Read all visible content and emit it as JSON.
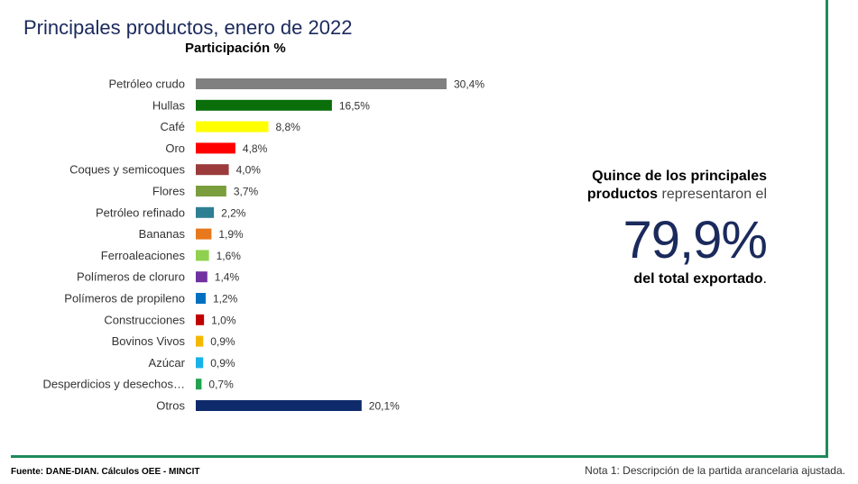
{
  "title": "Principales productos, enero de 2022",
  "subtitle": "Participación %",
  "summary": {
    "text_bold": "Quince de los principales productos",
    "text_regular": "representaron el",
    "big_value": "79,9%",
    "text_tail_bold": "del total exportado",
    "text_tail_end": "."
  },
  "footer": {
    "source": "Fuente: DANE-DIAN. Cálculos OEE - MINCIT",
    "note": "Nota 1: Descripción de la partida arancelaria ajustada."
  },
  "chart_data": {
    "type": "bar",
    "orientation": "horizontal",
    "title": "Principales productos, enero de 2022",
    "xlabel": "Participación %",
    "ylabel": "",
    "xlim": [
      0,
      30.4
    ],
    "grid": false,
    "categories": [
      "Petróleo crudo",
      "Hullas",
      "Café",
      "Oro",
      "Coques y semicoques",
      "Flores",
      "Petróleo refinado",
      "Bananas",
      "Ferroaleaciones",
      "Polímeros de cloruro",
      "Polímeros de propileno",
      "Construcciones",
      "Bovinos Vivos",
      "Azúcar",
      "Desperdicios y desechos…",
      "Otros"
    ],
    "values": [
      30.4,
      16.5,
      8.8,
      4.8,
      4.0,
      3.7,
      2.2,
      1.9,
      1.6,
      1.4,
      1.2,
      1.0,
      0.9,
      0.9,
      0.7,
      20.1
    ],
    "value_labels": [
      "30,4%",
      "16,5%",
      "8,8%",
      "4,8%",
      "4,0%",
      "3,7%",
      "2,2%",
      "1,9%",
      "1,6%",
      "1,4%",
      "1,2%",
      "1,0%",
      "0,9%",
      "0,9%",
      "0,7%",
      "20,1%"
    ],
    "colors": [
      "#808080",
      "#0a6e0a",
      "#ffff00",
      "#ff0000",
      "#9b3b3b",
      "#7a9e3d",
      "#2e7f93",
      "#e8781c",
      "#8fd14f",
      "#7030a0",
      "#0070c0",
      "#c00000",
      "#f5b800",
      "#19b2e8",
      "#21a350",
      "#0e2a6b"
    ]
  }
}
